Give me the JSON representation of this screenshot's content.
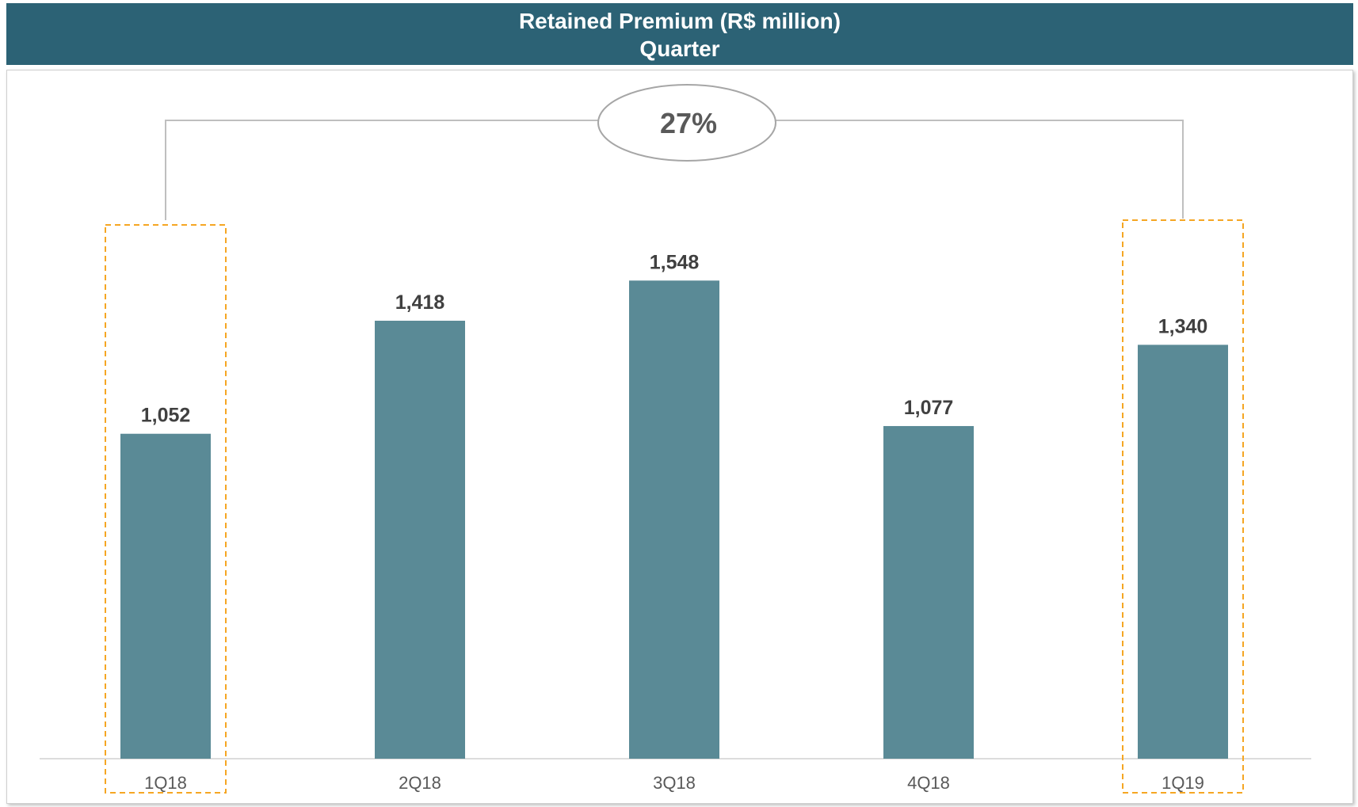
{
  "header": {
    "title": "Retained Premium (R$ million)",
    "subtitle": "Quarter"
  },
  "chart_data": {
    "type": "bar",
    "title": "Retained Premium (R$ million)",
    "subtitle": "Quarter",
    "categories": [
      "1Q18",
      "2Q18",
      "3Q18",
      "4Q18",
      "1Q19"
    ],
    "values": [
      1052,
      1418,
      1548,
      1077,
      1340
    ],
    "value_labels": [
      "1,052",
      "1,418",
      "1,548",
      "1,077",
      "1,340"
    ],
    "growth_annotation": "27%",
    "highlighted_categories": [
      "1Q18",
      "1Q19"
    ],
    "ylim": [
      0,
      1600
    ],
    "grid": false,
    "xlabel": "",
    "ylabel": "",
    "colors": {
      "bar": "#5a8a96",
      "header": "#2c6275",
      "highlight": "#f5a623",
      "value_label": "#404040",
      "tick_label": "#595959",
      "connector": "#bfbfbf"
    }
  }
}
